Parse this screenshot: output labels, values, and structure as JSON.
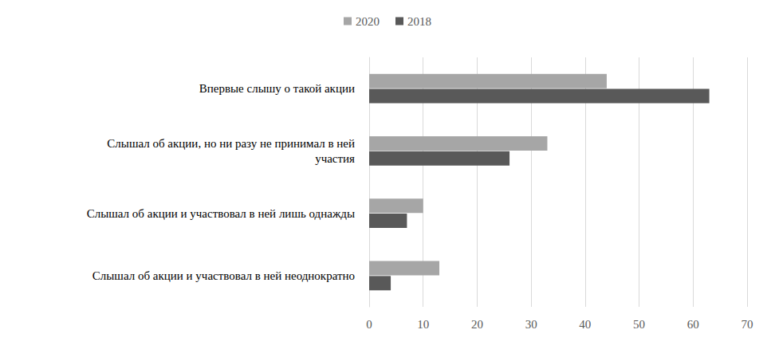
{
  "chart_data": {
    "type": "bar",
    "orientation": "horizontal",
    "categories": [
      "Впервые слышу о такой акции",
      "Слышал об акции, но ни разу не принимал в ней\nучастия",
      "Слышал об акции и участвовал в ней лишь однажды",
      "Слышал об акции и участвовал в ней неоднократно"
    ],
    "series": [
      {
        "name": "2020",
        "color": "#a6a6a6",
        "values": [
          44,
          33,
          10,
          13
        ]
      },
      {
        "name": "2018",
        "color": "#595959",
        "values": [
          63,
          26,
          7,
          4
        ]
      }
    ],
    "xlim": [
      0,
      70
    ],
    "xticks": [
      0,
      10,
      20,
      30,
      40,
      50,
      60,
      70
    ],
    "grid": true,
    "legend": "top"
  }
}
